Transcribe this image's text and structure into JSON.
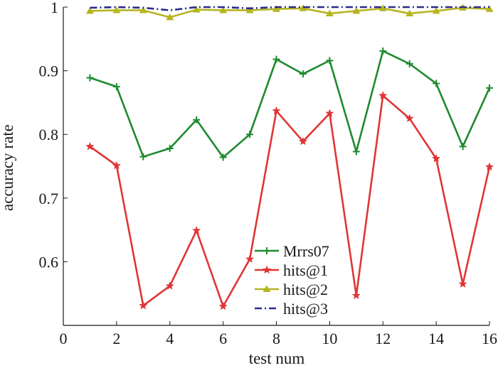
{
  "chart_data": {
    "type": "line",
    "xlabel": "test num",
    "ylabel": "accuracy rate",
    "xlim": [
      0,
      16
    ],
    "ylim": [
      0.5,
      1.0
    ],
    "xticks": [
      0,
      2,
      4,
      6,
      8,
      10,
      12,
      14,
      16
    ],
    "yticks": [
      0.6,
      0.7,
      0.8,
      0.9,
      1.0
    ],
    "xtick_labels": [
      "0",
      "2",
      "4",
      "6",
      "8",
      "10",
      "12",
      "14",
      "16"
    ],
    "ytick_labels": [
      "0.6",
      "0.7",
      "0.8",
      "0.9",
      "1"
    ],
    "grid": false,
    "legend_position": "bottom-center",
    "x": [
      1,
      2,
      3,
      4,
      5,
      6,
      7,
      8,
      9,
      10,
      11,
      12,
      13,
      14,
      15,
      16
    ],
    "series": [
      {
        "name": "Mrrs07",
        "color": "#1e8a2e",
        "marker": "plus",
        "dash": "solid",
        "values": [
          0.889,
          0.875,
          0.765,
          0.778,
          0.823,
          0.764,
          0.8,
          0.918,
          0.895,
          0.916,
          0.773,
          0.931,
          0.911,
          0.88,
          0.781,
          0.873
        ]
      },
      {
        "name": "hits@1",
        "color": "#e03535",
        "marker": "star",
        "dash": "solid",
        "values": [
          0.781,
          0.751,
          0.531,
          0.562,
          0.649,
          0.53,
          0.604,
          0.837,
          0.789,
          0.833,
          0.547,
          0.861,
          0.825,
          0.762,
          0.565,
          0.749
        ]
      },
      {
        "name": "hits@2",
        "color": "#b5b520",
        "marker": "triangle",
        "dash": "solid",
        "values": [
          0.994,
          0.995,
          0.995,
          0.984,
          0.996,
          0.995,
          0.995,
          0.997,
          0.998,
          0.99,
          0.994,
          0.998,
          0.99,
          0.994,
          0.999,
          0.997
        ]
      },
      {
        "name": "hits@3",
        "color": "#2a2a8c",
        "marker": "none",
        "dash": "dashdot",
        "values": [
          0.999,
          1.0,
          0.999,
          0.995,
          1.0,
          1.0,
          0.998,
          1.0,
          1.0,
          1.0,
          1.0,
          1.0,
          1.0,
          1.0,
          1.0,
          1.0
        ]
      }
    ]
  }
}
